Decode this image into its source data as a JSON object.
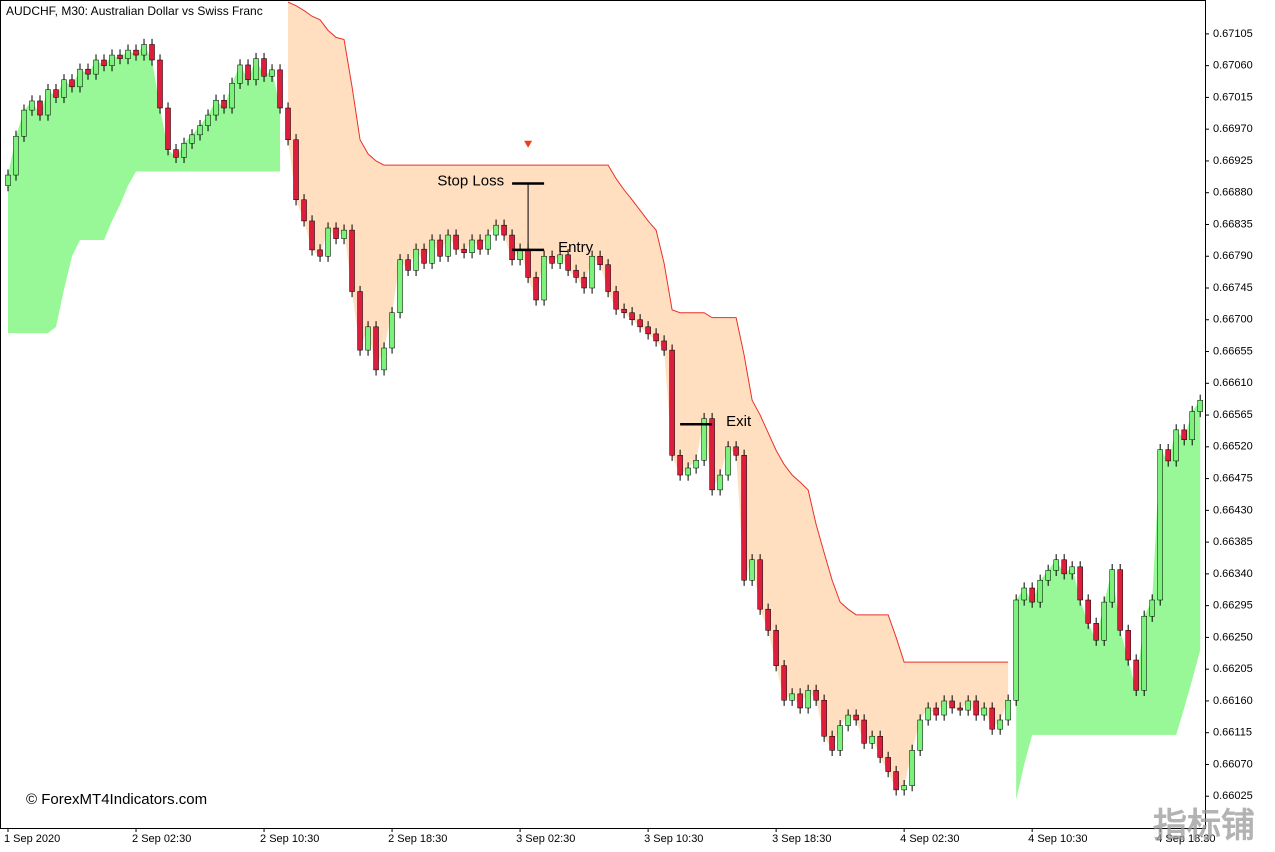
{
  "chart_data": {
    "type": "candlestick",
    "title": "AUDCHF, M30:  Australian Dollar vs Swiss Franc",
    "watermark": "© ForexMT4Indicators.com",
    "watermark2": "指标铺",
    "bull_color": "#7cf27c",
    "bear_color": "#dc1e3c",
    "open": [
      0.6689,
      0.66905,
      0.6696,
      0.66997,
      0.6701,
      0.6699,
      0.67026,
      0.67015,
      0.6704,
      0.6703,
      0.67055,
      0.67048,
      0.67068,
      0.6706,
      0.67075,
      0.6707,
      0.67082,
      0.67075,
      0.6709,
      0.67068,
      0.67,
      0.66941,
      0.6693,
      0.6695,
      0.66962,
      0.66975,
      0.6699,
      0.67011,
      0.67,
      0.67035,
      0.67061,
      0.6704,
      0.6707,
      0.67045,
      0.67054,
      0.67,
      0.66955,
      0.6687,
      0.6684,
      0.66799,
      0.6679,
      0.6683,
      0.66815,
      0.66827,
      0.6674,
      0.66657,
      0.6669,
      0.66629,
      0.6666,
      0.6671,
      0.66785,
      0.6677,
      0.668,
      0.6678,
      0.66813,
      0.6679,
      0.6682,
      0.668,
      0.66795,
      0.66813,
      0.668,
      0.6682,
      0.66834,
      0.6682,
      0.66785,
      0.668,
      0.6676,
      0.66728,
      0.6679,
      0.6678,
      0.66792,
      0.6677,
      0.6676,
      0.66745,
      0.6679,
      0.66778,
      0.6674,
      0.66715,
      0.6671,
      0.667,
      0.6669,
      0.6668,
      0.6667,
      0.66657,
      0.66508,
      0.6648,
      0.6649,
      0.66501,
      0.6656,
      0.66459,
      0.6648,
      0.6652,
      0.66508,
      0.66331,
      0.6636,
      0.6629,
      0.6626,
      0.6621,
      0.66161,
      0.6617,
      0.6615,
      0.66175,
      0.66161,
      0.6611,
      0.6609,
      0.66125,
      0.6614,
      0.66133,
      0.661,
      0.6611,
      0.6608,
      0.6606,
      0.66034,
      0.6604,
      0.6609,
      0.66133,
      0.6615,
      0.6614,
      0.6616,
      0.6615,
      0.66147,
      0.6616,
      0.6614,
      0.6615,
      0.6612,
      0.66133,
      0.66161,
      0.66303,
      0.6632,
      0.663,
      0.66331,
      0.66345,
      0.6636,
      0.6634,
      0.6635,
      0.66303,
      0.6627,
      0.66246,
      0.663,
      0.66346,
      0.6626,
      0.66218,
      0.66175,
      0.6628,
      0.66303,
      0.66516,
      0.665,
      0.66544,
      0.6653,
      0.6657
    ],
    "high": [
      0.66913,
      0.66968,
      0.67005,
      0.67018,
      0.67018,
      0.67034,
      0.67034,
      0.67048,
      0.67048,
      0.67063,
      0.67063,
      0.67076,
      0.67076,
      0.67083,
      0.67083,
      0.6709,
      0.6709,
      0.67098,
      0.67098,
      0.67076,
      0.67008,
      0.66949,
      0.66958,
      0.6697,
      0.66983,
      0.66998,
      0.67019,
      0.67019,
      0.67043,
      0.67069,
      0.67069,
      0.67078,
      0.67078,
      0.67062,
      0.67062,
      0.67008,
      0.66963,
      0.66878,
      0.66848,
      0.66807,
      0.66838,
      0.66838,
      0.66835,
      0.66835,
      0.66748,
      0.66698,
      0.66698,
      0.66668,
      0.66718,
      0.66793,
      0.66793,
      0.66808,
      0.66808,
      0.66821,
      0.66821,
      0.66828,
      0.66828,
      0.66808,
      0.66821,
      0.66821,
      0.66828,
      0.66842,
      0.66842,
      0.66828,
      0.66808,
      0.66808,
      0.66768,
      0.66798,
      0.66798,
      0.668,
      0.668,
      0.66778,
      0.66768,
      0.66798,
      0.66798,
      0.66786,
      0.66748,
      0.66723,
      0.66718,
      0.66708,
      0.66698,
      0.66688,
      0.66678,
      0.66665,
      0.66516,
      0.66498,
      0.66509,
      0.66568,
      0.66568,
      0.66488,
      0.66528,
      0.66528,
      0.66516,
      0.66368,
      0.66368,
      0.66298,
      0.66268,
      0.66218,
      0.66178,
      0.66178,
      0.66183,
      0.66183,
      0.66169,
      0.66118,
      0.66133,
      0.66148,
      0.66148,
      0.66141,
      0.66118,
      0.66118,
      0.66088,
      0.66068,
      0.66048,
      0.66098,
      0.66141,
      0.66158,
      0.66158,
      0.66168,
      0.66168,
      0.66158,
      0.66168,
      0.66168,
      0.66158,
      0.66158,
      0.66141,
      0.66169,
      0.66311,
      0.66328,
      0.66328,
      0.66339,
      0.66353,
      0.66368,
      0.66368,
      0.66358,
      0.66358,
      0.66311,
      0.66278,
      0.66308,
      0.66354,
      0.66354,
      0.66268,
      0.66226,
      0.66288,
      0.66311,
      0.66524,
      0.66524,
      0.66552,
      0.66552,
      0.66578,
      0.66594
    ],
    "low": [
      0.66882,
      0.66897,
      0.66952,
      0.66989,
      0.66982,
      0.66982,
      0.67007,
      0.67007,
      0.67022,
      0.67022,
      0.6704,
      0.6704,
      0.67052,
      0.67052,
      0.67062,
      0.67062,
      0.67067,
      0.67067,
      0.6706,
      0.66992,
      0.66933,
      0.66922,
      0.66922,
      0.66942,
      0.66954,
      0.66967,
      0.66982,
      0.66992,
      0.66992,
      0.67027,
      0.67032,
      0.67032,
      0.67037,
      0.67037,
      0.66992,
      0.66947,
      0.66862,
      0.66832,
      0.66791,
      0.66782,
      0.66782,
      0.66807,
      0.66807,
      0.66732,
      0.66649,
      0.66649,
      0.66621,
      0.66621,
      0.66652,
      0.66702,
      0.66762,
      0.66762,
      0.66772,
      0.66772,
      0.66782,
      0.66782,
      0.66792,
      0.66787,
      0.66787,
      0.66792,
      0.66792,
      0.66812,
      0.66812,
      0.66777,
      0.66777,
      0.66752,
      0.6672,
      0.6672,
      0.66772,
      0.66772,
      0.66762,
      0.66752,
      0.66737,
      0.66737,
      0.6677,
      0.66732,
      0.66707,
      0.66702,
      0.66692,
      0.66682,
      0.66672,
      0.66662,
      0.66649,
      0.665,
      0.66472,
      0.66472,
      0.66482,
      0.66493,
      0.66451,
      0.66451,
      0.66472,
      0.665,
      0.66323,
      0.66323,
      0.66282,
      0.66252,
      0.66202,
      0.66153,
      0.66153,
      0.66142,
      0.66142,
      0.66153,
      0.66102,
      0.66082,
      0.66082,
      0.66117,
      0.66125,
      0.66092,
      0.66092,
      0.66072,
      0.66052,
      0.66026,
      0.66026,
      0.66032,
      0.66082,
      0.66125,
      0.66132,
      0.66132,
      0.66142,
      0.66139,
      0.66139,
      0.66132,
      0.66132,
      0.66112,
      0.66112,
      0.66125,
      0.66153,
      0.66295,
      0.66292,
      0.66292,
      0.66323,
      0.66337,
      0.66332,
      0.66332,
      0.66295,
      0.66262,
      0.66238,
      0.66238,
      0.66292,
      0.66252,
      0.6621,
      0.66167,
      0.66167,
      0.66272,
      0.66295,
      0.66492,
      0.66492,
      0.66522,
      0.66522,
      0.66562
    ],
    "close": [
      0.66905,
      0.6696,
      0.66997,
      0.6701,
      0.6699,
      0.67026,
      0.67015,
      0.6704,
      0.6703,
      0.67055,
      0.67048,
      0.67068,
      0.6706,
      0.67075,
      0.6707,
      0.67082,
      0.67075,
      0.6709,
      0.67068,
      0.67,
      0.66941,
      0.6693,
      0.6695,
      0.66962,
      0.66975,
      0.6699,
      0.67011,
      0.67,
      0.67035,
      0.67061,
      0.6704,
      0.6707,
      0.67045,
      0.67054,
      0.67,
      0.66955,
      0.6687,
      0.6684,
      0.66799,
      0.6679,
      0.6683,
      0.66815,
      0.66827,
      0.6674,
      0.66657,
      0.6669,
      0.66629,
      0.6666,
      0.6671,
      0.66785,
      0.6677,
      0.668,
      0.6678,
      0.66813,
      0.6679,
      0.6682,
      0.668,
      0.66795,
      0.66813,
      0.668,
      0.6682,
      0.66834,
      0.6682,
      0.66785,
      0.668,
      0.6676,
      0.66728,
      0.6679,
      0.6678,
      0.66792,
      0.6677,
      0.6676,
      0.66745,
      0.6679,
      0.66778,
      0.6674,
      0.66715,
      0.6671,
      0.667,
      0.6669,
      0.6668,
      0.6667,
      0.66657,
      0.66508,
      0.6648,
      0.6649,
      0.66501,
      0.6656,
      0.66459,
      0.6648,
      0.6652,
      0.66508,
      0.66331,
      0.6636,
      0.6629,
      0.6626,
      0.6621,
      0.66161,
      0.6617,
      0.6615,
      0.66175,
      0.66161,
      0.6611,
      0.6609,
      0.66125,
      0.6614,
      0.66133,
      0.661,
      0.6611,
      0.6608,
      0.6606,
      0.66034,
      0.6604,
      0.6609,
      0.66133,
      0.6615,
      0.6614,
      0.6616,
      0.6615,
      0.66147,
      0.6616,
      0.6614,
      0.6615,
      0.6612,
      0.66133,
      0.66161,
      0.66303,
      0.6632,
      0.663,
      0.66331,
      0.66345,
      0.6636,
      0.6634,
      0.6635,
      0.66303,
      0.6627,
      0.66246,
      0.663,
      0.66346,
      0.6626,
      0.66218,
      0.66175,
      0.6628,
      0.66303,
      0.66516,
      0.665,
      0.66544,
      0.6653,
      0.6657,
      0.66586
    ],
    "up_stop": {
      "color": "#98f898",
      "values": [
        0.66681,
        0.66681,
        0.66681,
        0.66681,
        0.66681,
        0.66681,
        0.6669,
        0.66743,
        0.6679,
        0.66813,
        0.66813,
        0.66813,
        0.66813,
        0.6684,
        0.66863,
        0.6689,
        0.6691,
        0.6691,
        0.6691,
        0.6691,
        0.6691,
        0.6691,
        0.6691,
        0.6691,
        0.6691,
        0.6691,
        0.6691,
        0.6691,
        0.6691,
        0.6691,
        0.6691,
        0.6691,
        0.6691,
        0.6691,
        0.6691,
        null,
        null,
        null,
        null,
        null,
        null,
        null,
        null,
        null,
        null,
        null,
        null,
        null,
        null,
        null,
        null,
        null,
        null,
        null,
        null,
        null,
        null,
        null,
        null,
        null,
        null,
        null,
        null,
        null,
        null,
        null,
        null,
        null,
        null,
        null,
        null,
        null,
        null,
        null,
        null,
        null,
        null,
        null,
        null,
        null,
        null,
        null,
        null,
        null,
        null,
        null,
        null,
        null,
        null,
        null,
        null,
        null,
        null,
        null,
        null,
        null,
        null,
        null,
        null,
        null,
        null,
        null,
        null,
        null,
        null,
        null,
        null,
        null,
        null,
        null,
        null,
        null,
        null,
        null,
        null,
        null,
        null,
        null,
        null,
        null,
        null,
        null,
        null,
        null,
        null,
        null,
        0.6602,
        0.6607,
        0.66112,
        0.66112,
        0.66112,
        0.66112,
        0.66112,
        0.66112,
        0.66112,
        0.66112,
        0.66112,
        0.66112,
        0.66112,
        0.66112,
        0.66112,
        0.66112,
        0.66112,
        0.66112,
        0.66112,
        0.66112,
        0.66112,
        0.6615,
        0.6619,
        0.66232
      ]
    },
    "down_stop": {
      "color": "#ffdfc0",
      "line_color": "#e8302a",
      "values": [
        null,
        null,
        null,
        null,
        null,
        null,
        null,
        null,
        null,
        null,
        null,
        null,
        null,
        null,
        null,
        null,
        null,
        null,
        null,
        null,
        null,
        null,
        null,
        null,
        null,
        null,
        null,
        null,
        null,
        null,
        null,
        null,
        null,
        null,
        null,
        0.6715,
        0.67145,
        0.67138,
        0.6713,
        0.67125,
        0.6711,
        0.671,
        0.67097,
        0.6703,
        0.66955,
        0.66935,
        0.66925,
        0.66919,
        0.66919,
        0.66919,
        0.66919,
        0.66919,
        0.66919,
        0.66919,
        0.66919,
        0.66919,
        0.66919,
        0.66919,
        0.66919,
        0.66919,
        0.66919,
        0.66919,
        0.66919,
        0.66919,
        0.66919,
        0.66919,
        0.66919,
        0.66919,
        0.66919,
        0.66919,
        0.66919,
        0.66919,
        0.66919,
        0.66919,
        0.66919,
        0.66919,
        0.669,
        0.66884,
        0.6687,
        0.66855,
        0.6684,
        0.66827,
        0.6678,
        0.66714,
        0.6671,
        0.6671,
        0.6671,
        0.6671,
        0.66703,
        0.66703,
        0.66703,
        0.66703,
        0.6665,
        0.66586,
        0.66565,
        0.6654,
        0.66515,
        0.66495,
        0.6648,
        0.6647,
        0.66459,
        0.6641,
        0.6637,
        0.66331,
        0.663,
        0.6629,
        0.66282,
        0.66282,
        0.66282,
        0.66282,
        0.66282,
        0.6625,
        0.66215,
        0.66215,
        0.66215,
        0.66215,
        0.66215,
        0.66215,
        0.66215,
        0.66215,
        0.66215,
        0.66215,
        0.66215,
        0.66215,
        0.66215,
        0.66215,
        null,
        null,
        null,
        null,
        null,
        null,
        null,
        null,
        null,
        null,
        null,
        null,
        null,
        null,
        null,
        null,
        null,
        null,
        null,
        null,
        null,
        null,
        null,
        null
      ]
    },
    "annotations": [
      {
        "text": "Stop Loss",
        "from": 63,
        "to": 67,
        "value": 0.66893,
        "side": "left"
      },
      {
        "text": "Entry",
        "from": 63,
        "to": 67,
        "value": 0.66799,
        "side": "right"
      },
      {
        "text": "Exit",
        "from": 84,
        "to": 88,
        "value": 0.66552,
        "side": "right"
      }
    ],
    "signal_arrow": {
      "index": 65,
      "value": 0.66948,
      "color": "#e8401c"
    },
    "xlim": [
      -1,
      149.6
    ],
    "ylim": [
      0.6598,
      0.67153
    ],
    "xticks": [
      {
        "value": 0,
        "label": "1 Sep 2020"
      },
      {
        "value": 16,
        "label": "2 Sep 02:30"
      },
      {
        "value": 32,
        "label": "2 Sep 10:30"
      },
      {
        "value": 48,
        "label": "2 Sep 18:30"
      },
      {
        "value": 64,
        "label": "3 Sep 02:30"
      },
      {
        "value": 80,
        "label": "3 Sep 10:30"
      },
      {
        "value": 96,
        "label": "3 Sep 18:30"
      },
      {
        "value": 112,
        "label": "4 Sep 02:30"
      },
      {
        "value": 128,
        "label": "4 Sep 10:30"
      },
      {
        "value": 144,
        "label": "4 Sep 18:30"
      }
    ],
    "yticks": [
      0.66025,
      {
        "value": 0.6607,
        "label": "0.66070"
      },
      0.66115,
      {
        "value": 0.6616,
        "label": "0.66160"
      },
      0.66205,
      {
        "value": 0.6625,
        "label": "0.66250"
      },
      0.66295,
      {
        "value": 0.6634,
        "label": "0.66340"
      },
      0.66385,
      {
        "value": 0.6643,
        "label": "0.66430"
      },
      0.66475,
      {
        "value": 0.6652,
        "label": "0.66520"
      },
      0.66565,
      {
        "value": 0.6661,
        "label": "0.66610"
      },
      0.66655,
      {
        "value": 0.667,
        "label": "0.66700"
      },
      0.66745,
      {
        "value": 0.6679,
        "label": "0.66790"
      },
      0.66835,
      {
        "value": 0.6688,
        "label": "0.66880"
      },
      0.66925,
      {
        "value": 0.6697,
        "label": "0.66970"
      },
      0.67015,
      {
        "value": 0.6706,
        "label": "0.67060"
      },
      0.67105
    ]
  }
}
